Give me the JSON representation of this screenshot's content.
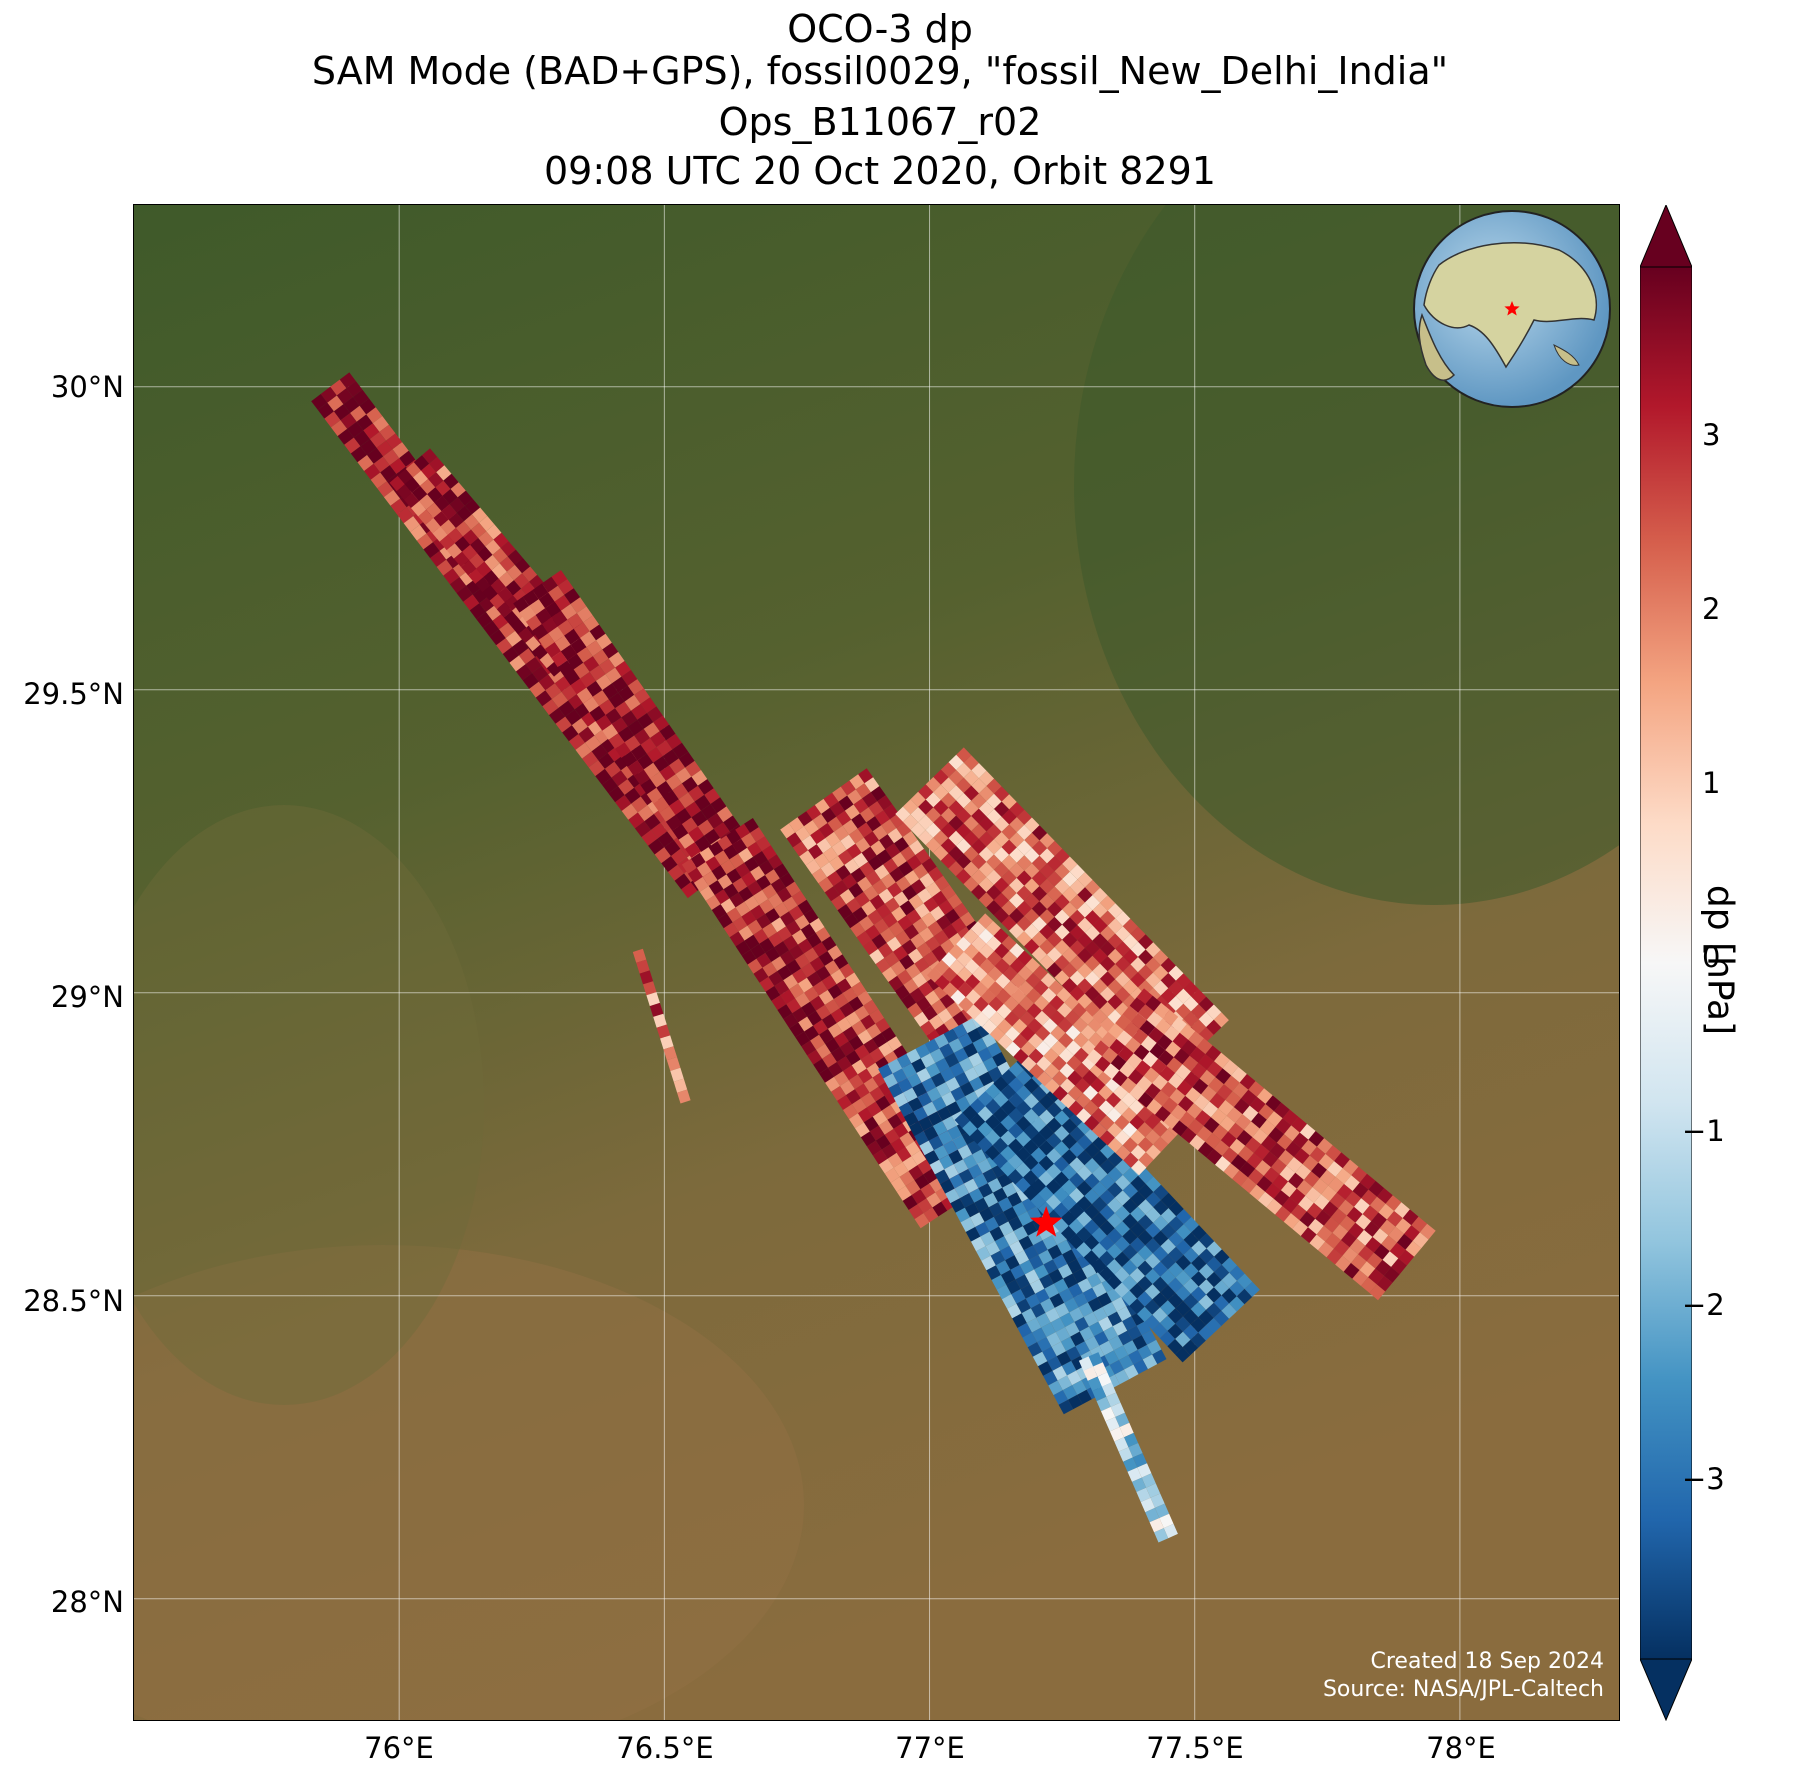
{
  "title": {
    "line1": "OCO-3 dp",
    "line2": "SAM Mode (BAD+GPS), fossil0029, \"fossil_New_Delhi_India\"",
    "line3": "Ops_B11067_r02",
    "line4": "09:08 UTC 20 Oct 2020, Orbit 8291"
  },
  "map": {
    "lon_range": [
      75.5,
      78.3
    ],
    "lat_range": [
      27.8,
      30.3
    ],
    "lat_ticks": [
      "30°N",
      "29.5°N",
      "29°N",
      "28.5°N",
      "28°N"
    ],
    "lon_ticks": [
      "76°E",
      "76.5°E",
      "77°E",
      "77.5°E",
      "78°E"
    ],
    "target_marker": {
      "name": "New Delhi",
      "lon": 77.22,
      "lat": 28.62,
      "color": "#ff0000"
    },
    "inset_globe": {
      "center": "South Asia",
      "marker_color": "#ff0000"
    },
    "credit": {
      "created": "Created 18 Sep 2024",
      "source": "Source: NASA/JPL-Caltech"
    }
  },
  "colorbar": {
    "label": "dp [hPa]",
    "range": [
      -4,
      4
    ],
    "ticks": [
      "3",
      "2",
      "1",
      "0",
      "−1",
      "−2",
      "−3"
    ],
    "colormap": "RdBu_r",
    "extend": "both",
    "colors": [
      "#053061",
      "#2166ac",
      "#4393c3",
      "#92c5de",
      "#d1e5f0",
      "#f7f7f7",
      "#fddbc7",
      "#f4a582",
      "#d6604d",
      "#b2182b",
      "#67001f"
    ]
  },
  "chart_data": {
    "type": "heatmap",
    "title": "OCO-3 dp",
    "xlabel": "",
    "ylabel": "",
    "xlim": [
      75.5,
      78.3
    ],
    "ylim": [
      27.8,
      30.3
    ],
    "value_label": "dp [hPa]",
    "value_range": [
      -4,
      4
    ],
    "swaths": [
      {
        "start": [
          75.87,
          30.0
        ],
        "end": [
          76.58,
          29.18
        ],
        "width_deg": 0.09,
        "mean_dp": 3.3
      },
      {
        "start": [
          76.02,
          29.87
        ],
        "end": [
          76.33,
          29.55
        ],
        "width_deg": 0.1,
        "mean_dp": 3.0
      },
      {
        "start": [
          76.26,
          29.67
        ],
        "end": [
          76.62,
          29.22
        ],
        "width_deg": 0.11,
        "mean_dp": 3.4
      },
      {
        "start": [
          76.45,
          29.07
        ],
        "end": [
          76.54,
          28.82
        ],
        "width_deg": 0.02,
        "mean_dp": 2.5
      },
      {
        "start": [
          76.6,
          29.25
        ],
        "end": [
          77.05,
          28.65
        ],
        "width_deg": 0.16,
        "mean_dp": 3.0
      },
      {
        "start": [
          76.8,
          29.32
        ],
        "end": [
          77.1,
          28.95
        ],
        "width_deg": 0.2,
        "mean_dp": 2.6
      },
      {
        "start": [
          77.0,
          28.92
        ],
        "end": [
          77.35,
          28.35
        ],
        "width_deg": 0.22,
        "mean_dp": -2.8
      },
      {
        "start": [
          77.12,
          28.85
        ],
        "end": [
          77.55,
          28.45
        ],
        "width_deg": 0.2,
        "mean_dp": -3.2
      },
      {
        "start": [
          77.05,
          29.08
        ],
        "end": [
          77.45,
          28.75
        ],
        "width_deg": 0.16,
        "mean_dp": 1.8
      },
      {
        "start": [
          77.0,
          29.35
        ],
        "end": [
          77.5,
          28.9
        ],
        "width_deg": 0.18,
        "mean_dp": 2.2
      },
      {
        "start": [
          77.35,
          28.95
        ],
        "end": [
          77.9,
          28.55
        ],
        "width_deg": 0.17,
        "mean_dp": 2.4
      },
      {
        "start": [
          77.3,
          28.4
        ],
        "end": [
          77.45,
          28.1
        ],
        "width_deg": 0.04,
        "mean_dp": -1.2
      }
    ]
  }
}
